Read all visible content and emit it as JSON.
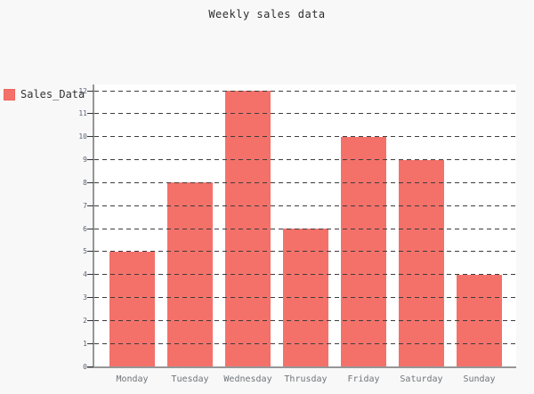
{
  "header": {
    "title": "Weekly sales data"
  },
  "legend": {
    "label": "Sales_Data",
    "swatch_color": "#f4716a",
    "position": "left"
  },
  "chart_data": {
    "type": "bar",
    "title": "Weekly sales data",
    "categories": [
      "Monday",
      "Tuesday",
      "Wednesday",
      "Thrusday",
      "Friday",
      "Saturday",
      "Sunday"
    ],
    "series": [
      {
        "name": "Sales_Data",
        "values": [
          5,
          8,
          12,
          6,
          10,
          9,
          4
        ]
      }
    ],
    "xlabel": "",
    "ylabel": "",
    "ylim": [
      0,
      12
    ],
    "ytick_step": 1,
    "grid": "horizontal-dashed",
    "legend_position": "left"
  },
  "colors": {
    "bar": "#f4716a",
    "page_background": "#f8f8f8",
    "plot_background": "#ffffff",
    "axis_line": "#969696",
    "gridline": "#3c3c3c",
    "y_tick_text": "#5a6275",
    "x_tick_text": "#70757a",
    "title_text": "#2e2e2e"
  }
}
